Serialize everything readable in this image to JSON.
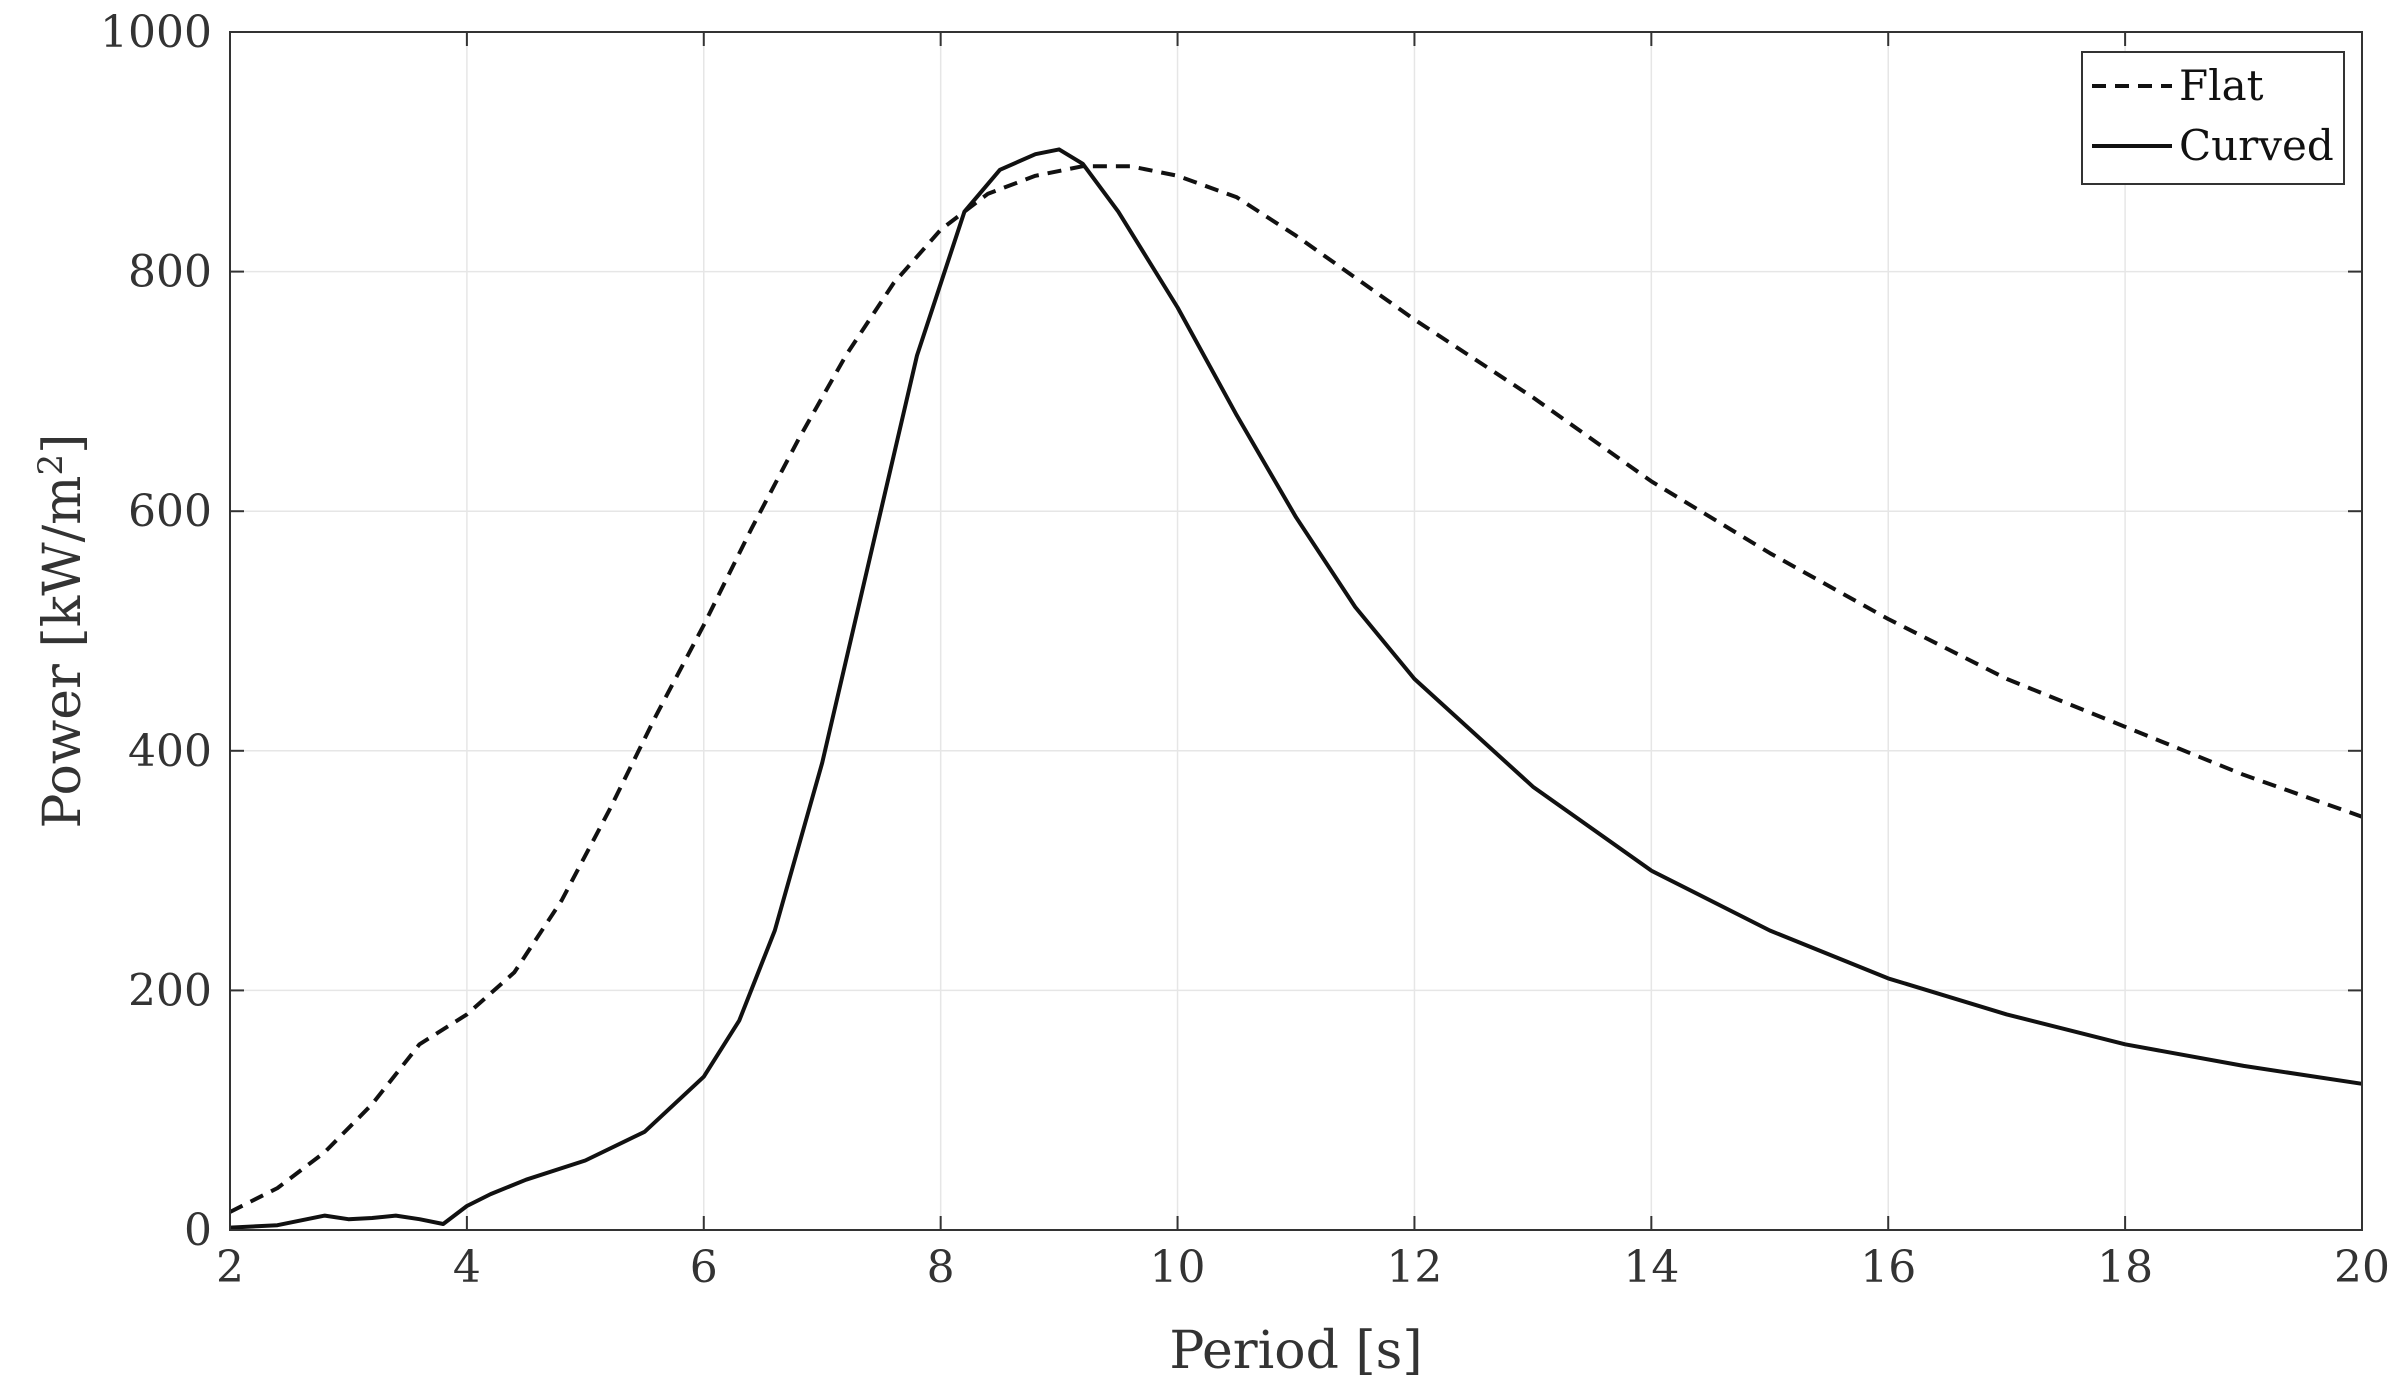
{
  "chart_data": {
    "type": "line",
    "title": "",
    "xlabel": "Period [s]",
    "ylabel_main": "Power [kW/m",
    "ylabel_sup": "2",
    "ylabel_end": "]",
    "xlim": [
      2,
      20
    ],
    "ylim": [
      0,
      1000
    ],
    "xticks": [
      2,
      4,
      6,
      8,
      10,
      12,
      14,
      16,
      18,
      20
    ],
    "yticks": [
      0,
      200,
      400,
      600,
      800,
      1000
    ],
    "grid": true,
    "legend_position": "top-right",
    "series": [
      {
        "name": "Flat",
        "style": "dashed",
        "color": "#111111",
        "x": [
          2,
          2.4,
          2.8,
          3.2,
          3.6,
          4,
          4.4,
          4.8,
          5.2,
          5.6,
          6,
          6.4,
          6.8,
          7.2,
          7.6,
          8,
          8.4,
          8.8,
          9.2,
          9.6,
          10,
          10.5,
          11,
          11.5,
          12,
          13,
          14,
          15,
          16,
          17,
          18,
          19,
          20
        ],
        "y": [
          15,
          35,
          65,
          105,
          155,
          180,
          215,
          275,
          350,
          430,
          505,
          585,
          660,
          730,
          790,
          835,
          865,
          880,
          888,
          888,
          880,
          862,
          830,
          795,
          760,
          695,
          625,
          565,
          510,
          460,
          420,
          380,
          345
        ]
      },
      {
        "name": "Curved",
        "style": "solid",
        "color": "#111111",
        "x": [
          2,
          2.4,
          2.8,
          3.0,
          3.2,
          3.4,
          3.6,
          3.8,
          4.0,
          4.2,
          4.5,
          5,
          5.5,
          6,
          6.3,
          6.6,
          7,
          7.4,
          7.8,
          8.2,
          8.5,
          8.8,
          9.0,
          9.2,
          9.5,
          10,
          10.5,
          11,
          11.5,
          12,
          13,
          14,
          15,
          16,
          17,
          18,
          19,
          20
        ],
        "y": [
          2,
          4,
          12,
          9,
          10,
          12,
          9,
          5,
          20,
          30,
          42,
          58,
          82,
          128,
          175,
          250,
          390,
          560,
          730,
          850,
          885,
          898,
          902,
          890,
          850,
          770,
          680,
          595,
          520,
          460,
          370,
          300,
          250,
          210,
          180,
          155,
          137,
          122
        ]
      }
    ]
  }
}
